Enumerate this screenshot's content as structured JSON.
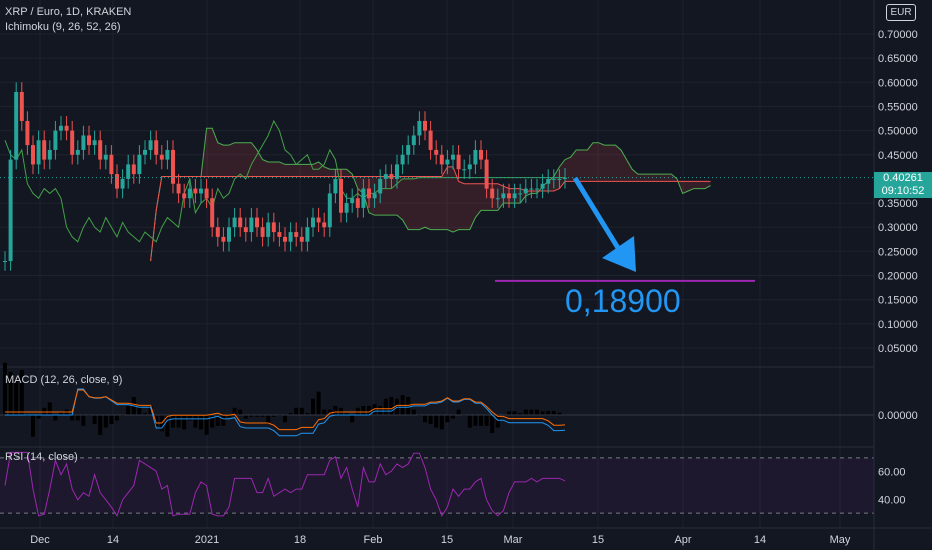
{
  "header": {
    "symbol_line": "XRP / Euro, 1D, KRAKEN",
    "ichimoku_label": "Ichimoku (9, 26, 52, 26)",
    "currency_button": "EUR"
  },
  "price_axis": {
    "ticks": [
      "0.70000",
      "0.65000",
      "0.60000",
      "0.55000",
      "0.50000",
      "0.45000",
      "0.35000",
      "0.30000",
      "0.25000",
      "0.20000",
      "0.15000",
      "0.10000",
      "0.05000"
    ],
    "tick_values": [
      0.7,
      0.65,
      0.6,
      0.55,
      0.5,
      0.45,
      0.35,
      0.3,
      0.25,
      0.2,
      0.15,
      0.1,
      0.05
    ],
    "current_price": "0.40261",
    "countdown": "09:10:52"
  },
  "annotation": {
    "target_text": "0,18900",
    "target_value": 0.189
  },
  "macd": {
    "label": "MACD (12, 26, close, 9)",
    "zero_label": "0.00000"
  },
  "rsi": {
    "label": "RSI (14, close)",
    "ticks": [
      "60.00",
      "40.00"
    ],
    "upper_band": 70,
    "lower_band": 30
  },
  "time_axis": {
    "labels": [
      "Dec",
      "14",
      "2021",
      "18",
      "Feb",
      "15",
      "Mar",
      "15",
      "Apr",
      "14",
      "May"
    ]
  },
  "colors": {
    "up": "#26a69a",
    "down": "#ef5350",
    "arrow": "#2196f3",
    "target_line": "#9c27b0",
    "rsi": "#9c27b0"
  },
  "chart_data": {
    "type": "candlestick",
    "price_range": [
      0.02,
      0.74
    ],
    "closes": [
      0.23,
      0.44,
      0.58,
      0.52,
      0.47,
      0.43,
      0.48,
      0.44,
      0.46,
      0.5,
      0.51,
      0.5,
      0.45,
      0.46,
      0.49,
      0.47,
      0.48,
      0.44,
      0.45,
      0.41,
      0.38,
      0.4,
      0.43,
      0.41,
      0.45,
      0.46,
      0.48,
      0.45,
      0.44,
      0.46,
      0.39,
      0.37,
      0.36,
      0.38,
      0.37,
      0.38,
      0.36,
      0.3,
      0.28,
      0.27,
      0.3,
      0.32,
      0.3,
      0.29,
      0.32,
      0.3,
      0.28,
      0.31,
      0.29,
      0.28,
      0.27,
      0.29,
      0.28,
      0.27,
      0.3,
      0.32,
      0.31,
      0.3,
      0.37,
      0.4,
      0.33,
      0.35,
      0.36,
      0.34,
      0.38,
      0.36,
      0.37,
      0.4,
      0.41,
      0.4,
      0.43,
      0.45,
      0.47,
      0.49,
      0.52,
      0.5,
      0.46,
      0.45,
      0.43,
      0.44,
      0.45,
      0.42,
      0.42,
      0.43,
      0.46,
      0.44,
      0.38,
      0.36,
      0.36,
      0.37,
      0.36,
      0.37,
      0.37,
      0.38,
      0.38,
      0.38,
      0.39,
      0.4,
      0.4,
      0.4,
      0.40261
    ]
  }
}
